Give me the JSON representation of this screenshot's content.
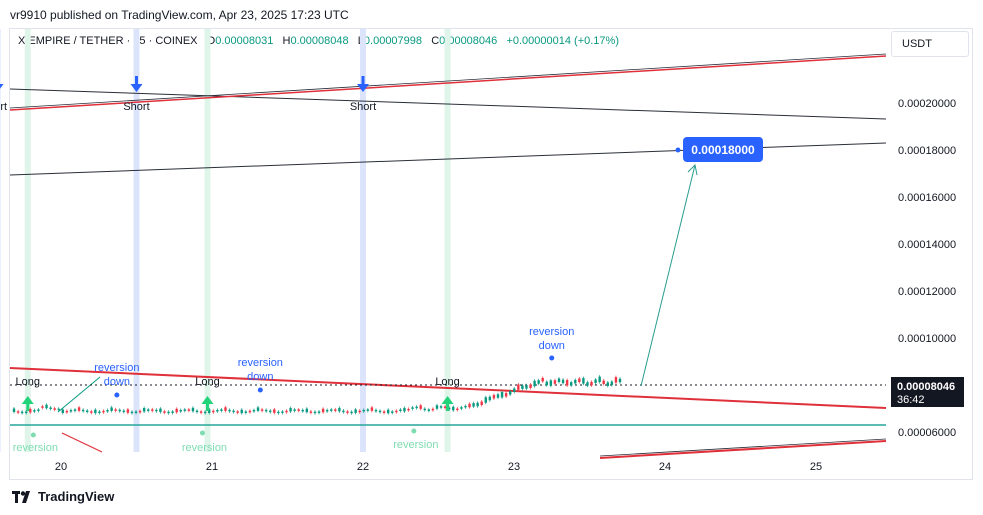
{
  "header": {
    "published_by": "vr9910 published on TradingView.com, Apr 23, 2025 17:23 UTC"
  },
  "legend": {
    "symbol": "X EMPIRE / TETHER · 45 · COINEX",
    "o_label": "O",
    "o_value": "0.00008031",
    "h_label": "H",
    "h_value": "0.00008048",
    "l_label": "L",
    "l_value": "0.00007998",
    "c_label": "C",
    "c_value": "0.00008046",
    "change": "+0.00000014 (+0.17%)"
  },
  "price_axis": {
    "unit": "USDT"
  },
  "footer": {
    "brand": "TradingView"
  },
  "colors": {
    "up": "#089981",
    "down": "#f23645",
    "accent": "#2962ff",
    "trend_red": "#e0303a",
    "support": "#26a69a",
    "short_band": "#dbe4fb",
    "long_band": "#dff5ea"
  },
  "chart_data": {
    "type": "candlestick",
    "x_ticks": [
      "20",
      "21",
      "22",
      "23",
      "24",
      "25"
    ],
    "y_ticks": [
      "0.00020000",
      "0.00018000",
      "0.00016000",
      "0.00014000",
      "0.00012000",
      "0.00010000",
      "0.00006000"
    ],
    "y_range": [
      5.2e-05,
      0.000228
    ],
    "last_price": "0.00008046",
    "countdown": "36:42",
    "target_label": "0.00018000",
    "support_level": 6.24e-05,
    "short_signals": [
      {
        "label": "hort",
        "x": 19.58
      },
      {
        "label": "Short",
        "x": 20.5
      },
      {
        "label": "Short",
        "x": 22.0
      }
    ],
    "long_signals": [
      {
        "label": "Long",
        "x": 19.78
      },
      {
        "label": "Long",
        "x": 20.97
      },
      {
        "label": "Long",
        "x": 22.56
      }
    ],
    "reversion_down": [
      {
        "text1": "reversion",
        "text2": "down",
        "x": 20.37
      },
      {
        "text1": "reversion",
        "text2": "down",
        "x": 21.32
      },
      {
        "text1": "reversion",
        "text2": "down",
        "x": 23.25
      }
    ],
    "reversion_up": [
      {
        "text": "reversion",
        "x": 19.83
      },
      {
        "text": "reversion",
        "x": 20.95
      },
      {
        "text": "reversion",
        "x": 22.35
      }
    ]
  }
}
